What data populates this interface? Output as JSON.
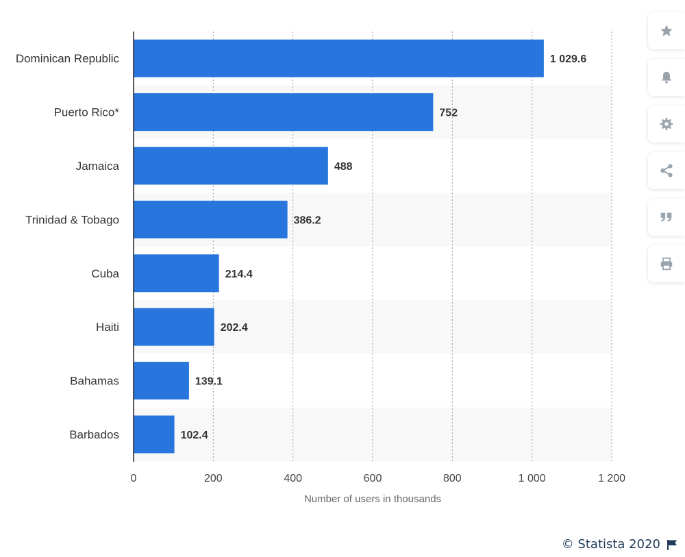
{
  "chart_data": {
    "type": "bar",
    "orientation": "horizontal",
    "categories": [
      "Dominican Republic",
      "Puerto Rico*",
      "Jamaica",
      "Trinidad & Tobago",
      "Cuba",
      "Haiti",
      "Bahamas",
      "Barbados"
    ],
    "values": [
      1029.6,
      752,
      488,
      386.2,
      214.4,
      202.4,
      139.1,
      102.4
    ],
    "value_labels": [
      "1 029.6",
      "752",
      "488",
      "386.2",
      "214.4",
      "202.4",
      "139.1",
      "102.4"
    ],
    "xticks": [
      0,
      200,
      400,
      600,
      800,
      1000,
      1200
    ],
    "xtick_labels": [
      "0",
      "200",
      "400",
      "600",
      "800",
      "1 000",
      "1 200"
    ],
    "xlim": [
      0,
      1200
    ],
    "xlabel": "Number of users in thousands",
    "ylabel": "",
    "title": "",
    "bar_color": "#2876dd",
    "stripe_color": "#f8f8f8",
    "grid": true,
    "legend": "none"
  },
  "toolbar": {
    "buttons": [
      {
        "name": "favorite-button",
        "icon": "star-icon"
      },
      {
        "name": "notification-button",
        "icon": "bell-icon"
      },
      {
        "name": "settings-button",
        "icon": "gear-icon"
      },
      {
        "name": "share-button",
        "icon": "share-icon"
      },
      {
        "name": "cite-button",
        "icon": "quote-icon"
      },
      {
        "name": "print-button",
        "icon": "printer-icon"
      }
    ],
    "icon_color": "#9aa4ad"
  },
  "footer": {
    "credit": "© Statista 2020",
    "flag_icon": "flag-icon"
  }
}
